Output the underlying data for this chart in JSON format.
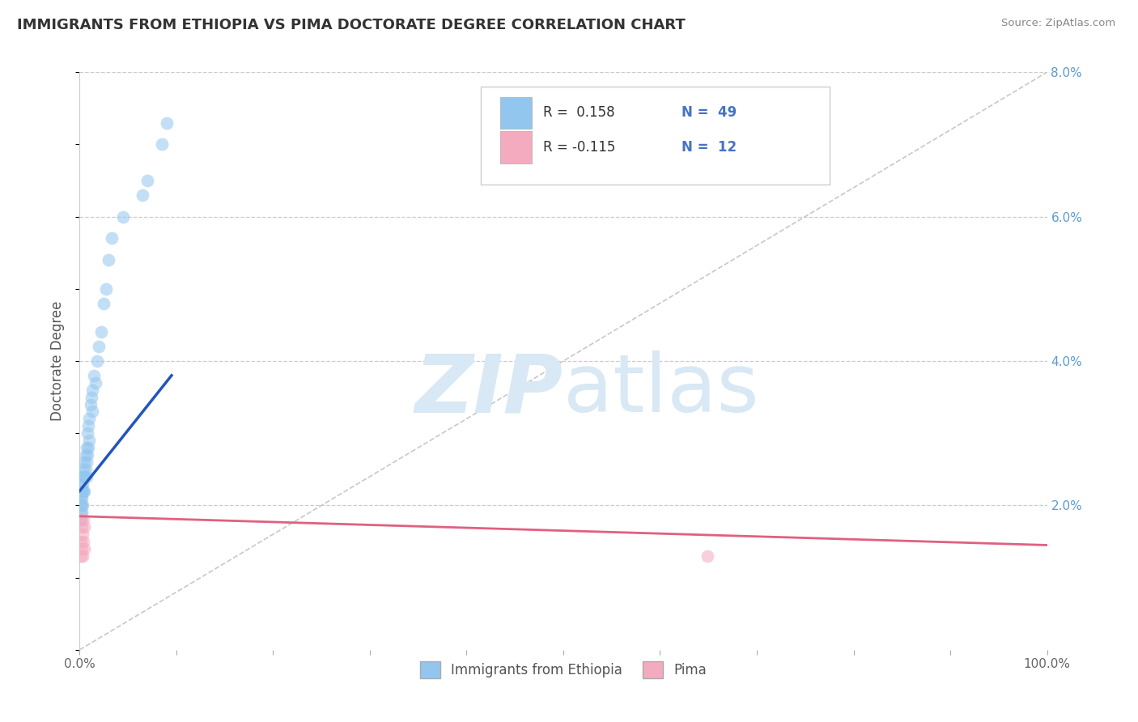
{
  "title": "IMMIGRANTS FROM ETHIOPIA VS PIMA DOCTORATE DEGREE CORRELATION CHART",
  "source": "Source: ZipAtlas.com",
  "ylabel": "Doctorate Degree",
  "xlim": [
    0,
    1.0
  ],
  "ylim": [
    0,
    0.08
  ],
  "x_ticks": [
    0.0,
    0.1,
    0.2,
    0.3,
    0.4,
    0.5,
    0.6,
    0.7,
    0.8,
    0.9,
    1.0
  ],
  "x_tick_labels": [
    "0.0%",
    "",
    "",
    "",
    "",
    "",
    "",
    "",
    "",
    "",
    "100.0%"
  ],
  "y_ticks": [
    0.0,
    0.02,
    0.04,
    0.06,
    0.08
  ],
  "y_tick_labels_right": [
    "",
    "2.0%",
    "4.0%",
    "6.0%",
    "8.0%"
  ],
  "legend_blue_label": "Immigrants from Ethiopia",
  "legend_pink_label": "Pima",
  "legend_r_blue": "R =  0.158",
  "legend_n_blue": "N =  49",
  "legend_r_pink": "R = -0.115",
  "legend_n_pink": "N =  12",
  "blue_color": "#93C6EE",
  "pink_color": "#F4AABF",
  "blue_line_color": "#2255BB",
  "pink_line_color": "#E06080",
  "diagonal_color": "#C8C8C8",
  "background_color": "#FFFFFF",
  "watermark_zip": "ZIP",
  "watermark_atlas": "atlas",
  "watermark_color": "#D8E8F4",
  "blue_x": [
    0.001,
    0.001,
    0.001,
    0.001,
    0.001,
    0.002,
    0.002,
    0.002,
    0.002,
    0.002,
    0.003,
    0.003,
    0.003,
    0.003,
    0.004,
    0.004,
    0.004,
    0.005,
    0.005,
    0.005,
    0.006,
    0.006,
    0.007,
    0.007,
    0.007,
    0.008,
    0.008,
    0.009,
    0.009,
    0.01,
    0.01,
    0.011,
    0.012,
    0.013,
    0.013,
    0.015,
    0.016,
    0.018,
    0.02,
    0.022,
    0.025,
    0.027,
    0.03,
    0.033,
    0.045,
    0.065,
    0.07,
    0.085,
    0.09
  ],
  "blue_y": [
    0.022,
    0.021,
    0.02,
    0.019,
    0.018,
    0.023,
    0.022,
    0.021,
    0.02,
    0.019,
    0.024,
    0.023,
    0.022,
    0.02,
    0.025,
    0.024,
    0.022,
    0.026,
    0.024,
    0.022,
    0.027,
    0.025,
    0.028,
    0.026,
    0.024,
    0.03,
    0.027,
    0.031,
    0.028,
    0.032,
    0.029,
    0.034,
    0.035,
    0.036,
    0.033,
    0.038,
    0.037,
    0.04,
    0.042,
    0.044,
    0.048,
    0.05,
    0.054,
    0.057,
    0.06,
    0.063,
    0.065,
    0.07,
    0.073
  ],
  "pink_x": [
    0.001,
    0.001,
    0.001,
    0.002,
    0.002,
    0.003,
    0.003,
    0.004,
    0.004,
    0.005,
    0.005,
    0.649
  ],
  "pink_y": [
    0.018,
    0.015,
    0.013,
    0.017,
    0.014,
    0.016,
    0.013,
    0.018,
    0.015,
    0.017,
    0.014,
    0.013
  ],
  "blue_line_x": [
    0.0,
    0.095
  ],
  "blue_line_y": [
    0.022,
    0.038
  ],
  "pink_line_x": [
    0.0,
    1.0
  ],
  "pink_line_y": [
    0.0185,
    0.0145
  ],
  "diag_line_x": [
    0.0,
    1.0
  ],
  "diag_line_y": [
    0.0,
    0.08
  ]
}
